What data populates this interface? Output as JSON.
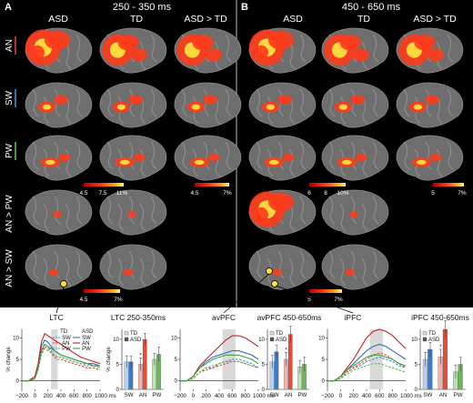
{
  "panels": {
    "a": {
      "letter": "A",
      "time_window": "250 - 350 ms"
    },
    "b": {
      "letter": "B",
      "time_window": "450 - 650 ms"
    }
  },
  "column_headers": {
    "asd": "ASD",
    "td": "TD",
    "asd_gt_td": "ASD > TD"
  },
  "row_labels": [
    "AN",
    "SW",
    "PW",
    "AN > PW",
    "AN > SW"
  ],
  "row_label_colors": [
    "#e0403a",
    "#3d8fd6",
    "#5cb85c",
    "#ffffff",
    "#ffffff"
  ],
  "colorbars": {
    "a_group": [
      "4.5",
      "7.5",
      "11%"
    ],
    "a_diff": [
      "4.5",
      "7%"
    ],
    "b_group": [
      "6",
      "8",
      "10%"
    ],
    "b_diff": [
      "5",
      "7%"
    ],
    "a_contrast": [
      "4.5",
      "7%"
    ],
    "b_contrast": [
      "5",
      "7%"
    ]
  },
  "roi_labels": {
    "ltc": "LTC",
    "avpfc": "avPFC",
    "ipfc": "iPFC"
  },
  "colors": {
    "td_sw": "#3d8fd6",
    "td_an": "#e0403a",
    "td_pw": "#5cb85c",
    "asd_sw": "#2a6fb8",
    "asd_an": "#cc2020",
    "asd_pw": "#3f9f3f",
    "brain": "#6e6e6e",
    "activation": "#ff3a1a",
    "hot": "#ffe040"
  },
  "chart_data": [
    {
      "type": "line",
      "title": "",
      "xlabel": "ms",
      "ylabel": "% change",
      "xlim": [
        -200,
        1000
      ],
      "ylim": [
        -2,
        12
      ],
      "xticks": [
        -200,
        0,
        200,
        400,
        600,
        800,
        1000
      ],
      "xtick_labels": [
        "−200",
        "0",
        "200",
        "400",
        "600",
        "800",
        "1000 ms"
      ],
      "yticks": [
        0,
        5,
        10
      ],
      "shaded": [
        250,
        350
      ],
      "legend": {
        "td": "TD",
        "asd": "ASD",
        "entries": [
          "SW",
          "AN",
          "PW"
        ]
      },
      "x": [
        -200,
        -100,
        0,
        50,
        100,
        150,
        200,
        250,
        300,
        350,
        400,
        500,
        600,
        700,
        800,
        900,
        1000
      ],
      "series": [
        {
          "name": "TD SW",
          "group": "TD",
          "cond": "SW",
          "values": [
            0,
            0,
            0.5,
            3,
            7,
            8.5,
            8,
            7,
            6,
            5.5,
            5.5,
            5,
            4.5,
            4,
            3.5,
            3.5,
            3
          ]
        },
        {
          "name": "TD AN",
          "group": "TD",
          "cond": "AN",
          "values": [
            0,
            0,
            0.5,
            2.5,
            6.5,
            8,
            7.5,
            6.5,
            5.5,
            5,
            5,
            4.5,
            4,
            3.5,
            3,
            3,
            2.5
          ]
        },
        {
          "name": "TD PW",
          "group": "TD",
          "cond": "PW",
          "values": [
            0,
            0,
            0.5,
            2.5,
            6,
            7.5,
            7,
            6.5,
            6,
            5.5,
            5.5,
            5,
            4.5,
            4,
            4,
            3.5,
            3
          ]
        },
        {
          "name": "ASD SW",
          "group": "ASD",
          "cond": "SW",
          "values": [
            0,
            0,
            0.5,
            3.5,
            8,
            9.5,
            9,
            8,
            7,
            6.5,
            6,
            5.5,
            5,
            4.5,
            4,
            4,
            3.5
          ]
        },
        {
          "name": "ASD AN",
          "group": "ASD",
          "cond": "AN",
          "values": [
            0,
            0,
            1,
            4,
            9,
            11,
            10.5,
            10,
            9.5,
            9,
            8.5,
            7.5,
            6.5,
            5.5,
            5,
            4.5,
            4
          ]
        },
        {
          "name": "ASD PW",
          "group": "ASD",
          "cond": "PW",
          "values": [
            0,
            0,
            0.5,
            3,
            7,
            8.5,
            8,
            7.5,
            7,
            6.5,
            6,
            5.5,
            5,
            4.5,
            4,
            3.5,
            3.5
          ]
        }
      ]
    },
    {
      "type": "bar",
      "title": "LTC 250-350ms",
      "ylabel": "% change",
      "categories": [
        "SW",
        "AN",
        "PW"
      ],
      "ylim": [
        0,
        12
      ],
      "yticks": [
        0,
        5,
        10
      ],
      "legend": [
        "TD",
        "ASD"
      ],
      "series": [
        {
          "name": "TD",
          "values": [
            5.5,
            5,
            6
          ],
          "errors": [
            1.2,
            1.3,
            1.2
          ]
        },
        {
          "name": "ASD",
          "values": [
            5.5,
            10,
            7
          ],
          "errors": [
            1.1,
            1.2,
            1.4
          ]
        }
      ],
      "annotations": [
        {
          "category": "AN",
          "text": "*"
        }
      ]
    },
    {
      "type": "line",
      "title": "",
      "xlabel": "ms",
      "ylabel": "",
      "xlim": [
        -200,
        1000
      ],
      "ylim": [
        -2,
        12
      ],
      "xticks": [
        -200,
        0,
        200,
        400,
        600,
        800,
        1000
      ],
      "xtick_labels": [
        "−200",
        "0",
        "200",
        "400",
        "600",
        "800",
        "1000 ms"
      ],
      "yticks": [
        0,
        5,
        10
      ],
      "shaded": [
        450,
        650
      ],
      "x": [
        -200,
        -100,
        0,
        100,
        200,
        300,
        400,
        500,
        600,
        700,
        800,
        900,
        1000
      ],
      "series": [
        {
          "name": "TD SW",
          "group": "TD",
          "cond": "SW",
          "values": [
            0,
            0,
            0.5,
            2,
            3,
            3,
            4,
            4.5,
            5,
            5,
            4.5,
            4,
            3
          ]
        },
        {
          "name": "TD AN",
          "group": "TD",
          "cond": "AN",
          "values": [
            0,
            0,
            0.5,
            2,
            2.5,
            3,
            3.5,
            4,
            4.5,
            4.5,
            4,
            3.5,
            3
          ]
        },
        {
          "name": "TD PW",
          "group": "TD",
          "cond": "PW",
          "values": [
            0,
            0,
            0.5,
            2,
            3,
            3.5,
            4,
            4.5,
            4.5,
            4.5,
            4,
            3.5,
            3
          ]
        },
        {
          "name": "ASD SW",
          "group": "ASD",
          "cond": "SW",
          "values": [
            0,
            0,
            1,
            3,
            4.5,
            5.5,
            6,
            6.5,
            7,
            7,
            6.5,
            6,
            5
          ]
        },
        {
          "name": "ASD AN",
          "group": "ASD",
          "cond": "AN",
          "values": [
            0,
            0,
            1,
            3.5,
            5,
            6.5,
            8,
            9.5,
            10.5,
            10.5,
            10,
            9,
            8
          ]
        },
        {
          "name": "ASD PW",
          "group": "ASD",
          "cond": "PW",
          "values": [
            0,
            0,
            1,
            3,
            4,
            5,
            5.5,
            6,
            6,
            6,
            5.5,
            5,
            4
          ]
        }
      ]
    },
    {
      "type": "bar",
      "title": "avPFC 450-650ms",
      "ylabel": "",
      "categories": [
        "SW",
        "AN",
        "PW"
      ],
      "ylim": [
        0,
        12
      ],
      "yticks": [
        0,
        5,
        10
      ],
      "legend": [
        "TD",
        "ASD"
      ],
      "series": [
        {
          "name": "TD",
          "values": [
            5.5,
            6,
            4.5
          ],
          "errors": [
            1.3,
            1.4,
            1.3
          ]
        },
        {
          "name": "ASD",
          "values": [
            7.5,
            11,
            5
          ],
          "errors": [
            1.3,
            1.6,
            1.4
          ]
        }
      ],
      "annotations": [
        {
          "category": "AN",
          "text": "*"
        }
      ]
    },
    {
      "type": "line",
      "title": "",
      "xlabel": "ms",
      "ylabel": "",
      "xlim": [
        -200,
        1000
      ],
      "ylim": [
        -2,
        12
      ],
      "xticks": [
        -200,
        0,
        200,
        400,
        600,
        800,
        1000
      ],
      "xtick_labels": [
        "−200",
        "0",
        "200",
        "400",
        "600",
        "800",
        "1000 ms"
      ],
      "yticks": [
        0,
        5,
        10
      ],
      "shaded": [
        450,
        650
      ],
      "x": [
        -200,
        -100,
        0,
        100,
        200,
        300,
        400,
        500,
        600,
        700,
        800,
        900,
        1000
      ],
      "series": [
        {
          "name": "TD SW",
          "group": "TD",
          "cond": "SW",
          "values": [
            0,
            0,
            0.5,
            2,
            3,
            3.5,
            4.5,
            5,
            5.5,
            5,
            4.5,
            3.5,
            3
          ]
        },
        {
          "name": "TD AN",
          "group": "TD",
          "cond": "AN",
          "values": [
            0,
            0,
            0.5,
            2,
            3,
            4,
            5,
            6,
            6.5,
            6,
            5,
            4,
            3
          ]
        },
        {
          "name": "TD PW",
          "group": "TD",
          "cond": "PW",
          "values": [
            0,
            0,
            0.5,
            1.5,
            2.5,
            3,
            3.5,
            4,
            4,
            3.5,
            3,
            2.5,
            2
          ]
        },
        {
          "name": "ASD SW",
          "group": "ASD",
          "cond": "SW",
          "values": [
            0,
            0,
            1,
            2.5,
            4,
            5.5,
            7,
            8,
            8.5,
            8,
            7,
            6,
            5
          ]
        },
        {
          "name": "ASD AN",
          "group": "ASD",
          "cond": "AN",
          "values": [
            0,
            0,
            1,
            3,
            5,
            7.5,
            10,
            11.5,
            12,
            11.5,
            10.5,
            9,
            7.5
          ]
        },
        {
          "name": "ASD PW",
          "group": "ASD",
          "cond": "PW",
          "values": [
            0,
            0,
            1,
            2.5,
            3.5,
            4.5,
            5.5,
            6,
            6,
            5.5,
            5,
            4,
            3.5
          ]
        }
      ]
    },
    {
      "type": "bar",
      "title": "iPFC 450-650ms",
      "ylabel": "",
      "categories": [
        "SW",
        "AN",
        "PW"
      ],
      "ylim": [
        0,
        12
      ],
      "yticks": [
        0,
        5,
        10
      ],
      "legend": [
        "TD",
        "ASD"
      ],
      "series": [
        {
          "name": "TD",
          "values": [
            6,
            6.5,
            3.5
          ],
          "errors": [
            1.4,
            1.5,
            1.3
          ]
        },
        {
          "name": "ASD",
          "values": [
            8,
            12,
            5
          ],
          "errors": [
            1.4,
            1.7,
            1.4
          ]
        }
      ],
      "annotations": [
        {
          "category": "AN",
          "text": "*"
        }
      ]
    }
  ]
}
